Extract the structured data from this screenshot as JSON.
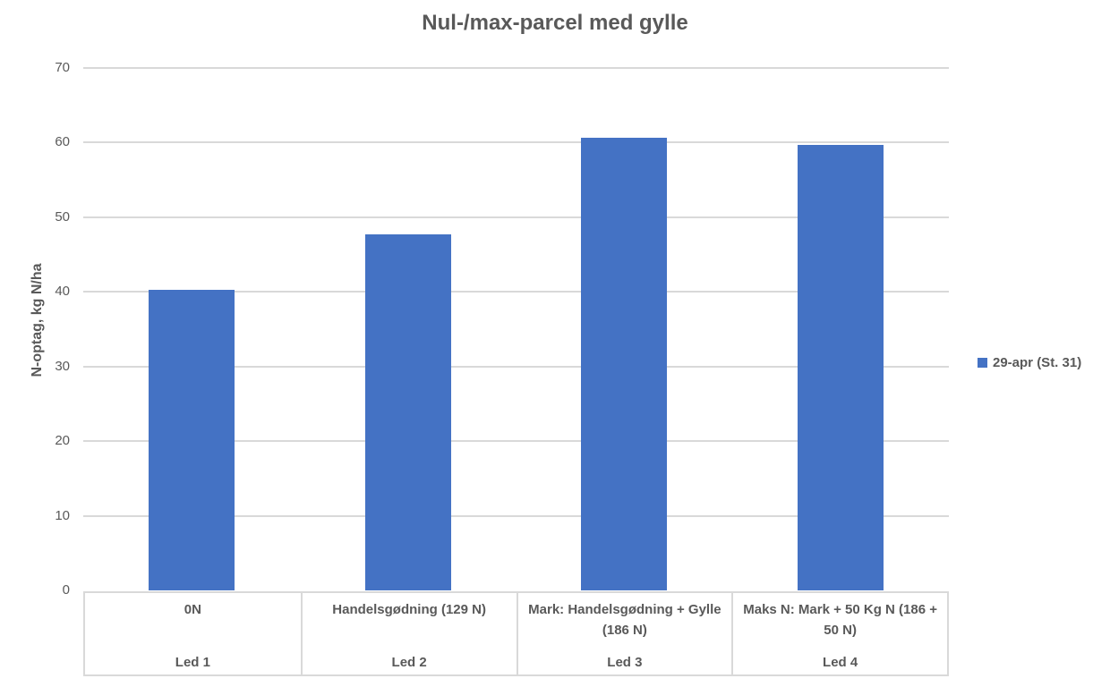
{
  "colors": {
    "bar": "#4472C4",
    "text": "#595959",
    "grid": "#D9D9D9",
    "background": "#FFFFFF"
  },
  "legend": {
    "label": "29-apr (St. 31)",
    "marker_color": "#4472C4"
  },
  "chart_data": {
    "type": "bar",
    "title": "Nul-/max-parcel med gylle",
    "xlabel": "",
    "ylabel": "N-optag, kg N/ha",
    "ylim": [
      0,
      70
    ],
    "yticks": [
      0,
      10,
      20,
      30,
      40,
      50,
      60,
      70
    ],
    "grid": true,
    "legend_position": "right",
    "categories": [
      "0N",
      "Handelsgødning (129 N)",
      "Mark: Handelsgødning + Gylle (186 N)",
      "Maks N: Mark + 50 Kg N (186 + 50 N)"
    ],
    "group_labels": [
      "Led 1",
      "Led 2",
      "Led 3",
      "Led 4"
    ],
    "series": [
      {
        "name": "29-apr (St. 31)",
        "color": "#4472C4",
        "values": [
          40.3,
          47.7,
          60.6,
          59.7
        ]
      }
    ]
  }
}
